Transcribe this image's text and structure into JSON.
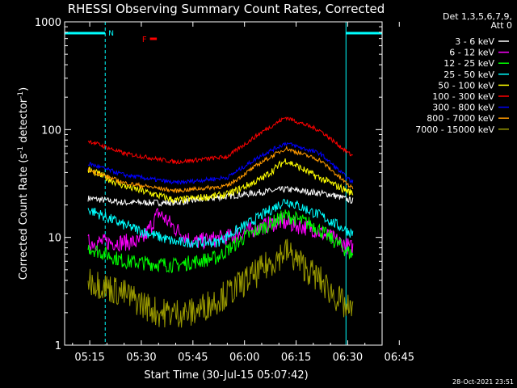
{
  "chart_data": {
    "type": "line",
    "title": "RHESSI Observing Summary Count Rates, Corrected",
    "xlabel": "Start Time (30-Jul-15 05:07:42)",
    "ylabel_main": "Corrected Count Rate (s",
    "ylabel_sup1": "-1",
    "ylabel_mid": " detector",
    "ylabel_sup2": "-1",
    "ylabel_end": ")",
    "yscale": "log",
    "ylim": [
      1,
      1000
    ],
    "xlim_minutes": [
      7.7,
      100
    ],
    "x_unit": "minutes after 05:00 UT",
    "x_ticks": [
      {
        "label": "05:15",
        "value": 15
      },
      {
        "label": "05:30",
        "value": 30
      },
      {
        "label": "05:45",
        "value": 45
      },
      {
        "label": "06:00",
        "value": 60
      },
      {
        "label": "06:15",
        "value": 75
      },
      {
        "label": "06:30",
        "value": 90
      },
      {
        "label": "06:45",
        "value": 105
      }
    ],
    "y_ticks": [
      {
        "label": "1",
        "value": 1
      },
      {
        "label": "10",
        "value": 10
      },
      {
        "label": "100",
        "value": 100
      },
      {
        "label": "1000",
        "value": 1000
      }
    ],
    "legend_header": [
      "Det 1,3,5,6,7,9,",
      "Att 0"
    ],
    "annotations": {
      "night_label": "N",
      "night_intervals": [
        [
          7.7,
          19.5
        ],
        [
          89.5,
          100
        ]
      ],
      "flare_label": "F",
      "flare_interval": [
        32.5,
        34.5
      ],
      "timestamp": "28-Oct-2021 23:51"
    },
    "data_interval_minutes": [
      14.5,
      91.5
    ],
    "series": [
      {
        "name": "3 - 6 keV",
        "color": "#ffffff",
        "values_at": [
          [
            15,
            23
          ],
          [
            25,
            21
          ],
          [
            40,
            21
          ],
          [
            55,
            24
          ],
          [
            72,
            28
          ],
          [
            85,
            25
          ],
          [
            91,
            22
          ]
        ]
      },
      {
        "name": "6 - 12 keV",
        "color": "#ff00ff",
        "values_at": [
          [
            15,
            9
          ],
          [
            30,
            9
          ],
          [
            35,
            17
          ],
          [
            40,
            12
          ],
          [
            45,
            9
          ],
          [
            55,
            10
          ],
          [
            70,
            14
          ],
          [
            80,
            12
          ],
          [
            91,
            8
          ]
        ]
      },
      {
        "name": "12 - 25 keV",
        "color": "#00ff00",
        "values_at": [
          [
            15,
            8
          ],
          [
            25,
            6
          ],
          [
            40,
            5.5
          ],
          [
            52,
            6.5
          ],
          [
            60,
            10
          ],
          [
            72,
            16
          ],
          [
            80,
            13
          ],
          [
            91,
            7
          ]
        ]
      },
      {
        "name": "25 - 50 keV",
        "color": "#00ffff",
        "values_at": [
          [
            15,
            18
          ],
          [
            25,
            13
          ],
          [
            40,
            9
          ],
          [
            52,
            9
          ],
          [
            62,
            14
          ],
          [
            72,
            22
          ],
          [
            82,
            16
          ],
          [
            91,
            11
          ]
        ]
      },
      {
        "name": "50 - 100 keV",
        "color": "#ffff00",
        "values_at": [
          [
            15,
            42
          ],
          [
            25,
            30
          ],
          [
            40,
            22
          ],
          [
            55,
            25
          ],
          [
            65,
            35
          ],
          [
            72,
            52
          ],
          [
            80,
            38
          ],
          [
            91,
            26
          ]
        ]
      },
      {
        "name": "100 - 300 keV",
        "color": "#ff0000",
        "values_at": [
          [
            15,
            78
          ],
          [
            25,
            60
          ],
          [
            40,
            50
          ],
          [
            55,
            56
          ],
          [
            65,
            95
          ],
          [
            72,
            130
          ],
          [
            82,
            98
          ],
          [
            91,
            58
          ]
        ]
      },
      {
        "name": "300 - 800 keV",
        "color": "#0000ff",
        "values_at": [
          [
            15,
            48
          ],
          [
            25,
            38
          ],
          [
            40,
            32
          ],
          [
            55,
            36
          ],
          [
            65,
            58
          ],
          [
            72,
            75
          ],
          [
            82,
            60
          ],
          [
            91,
            33
          ]
        ]
      },
      {
        "name": "800 - 7000 keV",
        "color": "#ff9900",
        "values_at": [
          [
            15,
            42
          ],
          [
            25,
            32
          ],
          [
            40,
            27
          ],
          [
            55,
            30
          ],
          [
            65,
            50
          ],
          [
            72,
            67
          ],
          [
            82,
            52
          ],
          [
            91,
            29
          ]
        ]
      },
      {
        "name": "7000 - 15000 keV",
        "color": "#999900",
        "values_at": [
          [
            15,
            4
          ],
          [
            25,
            3
          ],
          [
            35,
            2
          ],
          [
            45,
            2
          ],
          [
            55,
            3
          ],
          [
            65,
            5
          ],
          [
            72,
            7.5
          ],
          [
            82,
            4
          ],
          [
            91,
            2
          ]
        ]
      }
    ]
  }
}
